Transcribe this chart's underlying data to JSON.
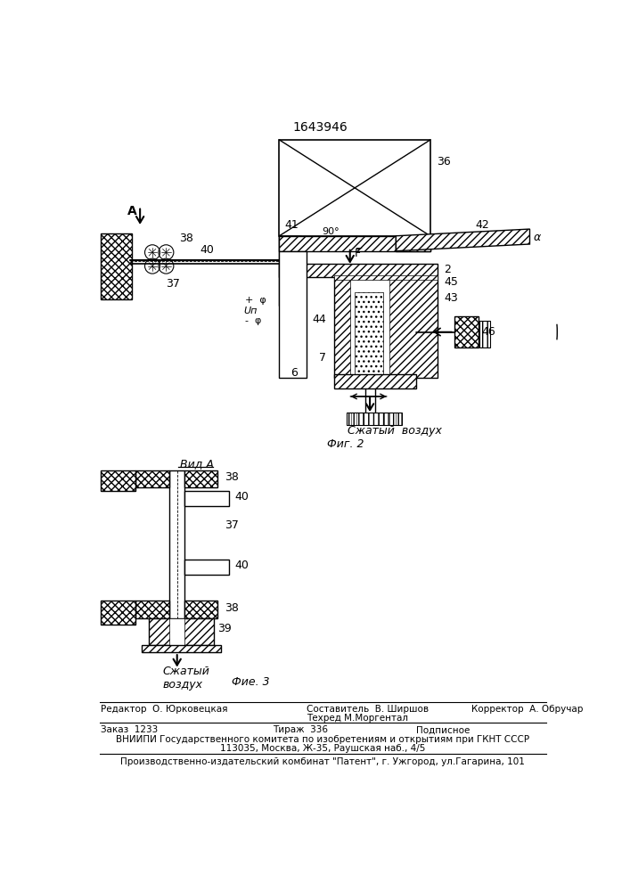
{
  "patent_number": "1643946",
  "fig2_label": "Фиг. 2",
  "fig3_label": "Фие. 3",
  "view_a_label": "Вид А",
  "compressed_air": "Сжатый  воздух",
  "compressed_air_fig3": "Сжатый\nвоздух",
  "editor_line1": "Редактор  О. Юрковецкая",
  "editor_line2": "Составитель  В. Ширшов",
  "editor_line3": "Техред М.Моргентал",
  "editor_line4": "Корректор  А. Обручар",
  "order_line": "Заказ  1233",
  "tirazh_line": "Тираж  336",
  "podp_line": "Подписное",
  "vniip_line": "ВНИИПИ Государственного комитета по изобретениям и открытиям при ГКНТ СССР",
  "address_line": "113035, Москва, Ж-35, Раушская наб., 4/5",
  "factory_line": "Производственно-издательский комбинат \"Патент\", г. Ужгород, ул.Гагарина, 101",
  "bg_color": "#ffffff"
}
